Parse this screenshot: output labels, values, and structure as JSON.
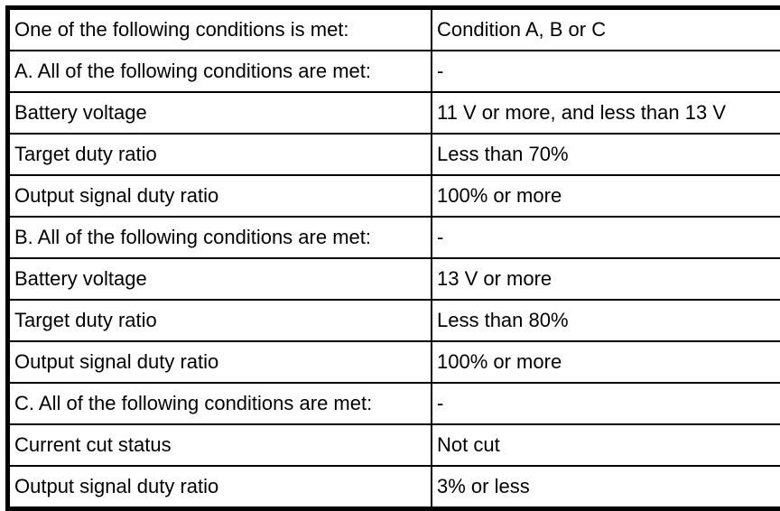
{
  "table": {
    "rows": [
      {
        "label": "One of the following conditions is met:",
        "value": "Condition A, B or C"
      },
      {
        "label": "A. All of the following conditions are met:",
        "value": "-"
      },
      {
        "label": "Battery voltage",
        "value": "11 V or more, and less than 13 V"
      },
      {
        "label": "Target duty ratio",
        "value": "Less than 70%"
      },
      {
        "label": "Output signal duty ratio",
        "value": "100% or more"
      },
      {
        "label": "B. All of the following conditions are met:",
        "value": "-"
      },
      {
        "label": "Battery voltage",
        "value": "13 V or more"
      },
      {
        "label": "Target duty ratio",
        "value": "Less than 80%"
      },
      {
        "label": "Output signal duty ratio",
        "value": "100% or more"
      },
      {
        "label": "C. All of the following conditions are met:",
        "value": "-"
      },
      {
        "label": "Current cut status",
        "value": "Not cut"
      },
      {
        "label": "Output signal duty ratio",
        "value": "3% or less"
      }
    ],
    "colors": {
      "border": "#000000",
      "background": "#ffffff",
      "text": "#000000"
    }
  }
}
